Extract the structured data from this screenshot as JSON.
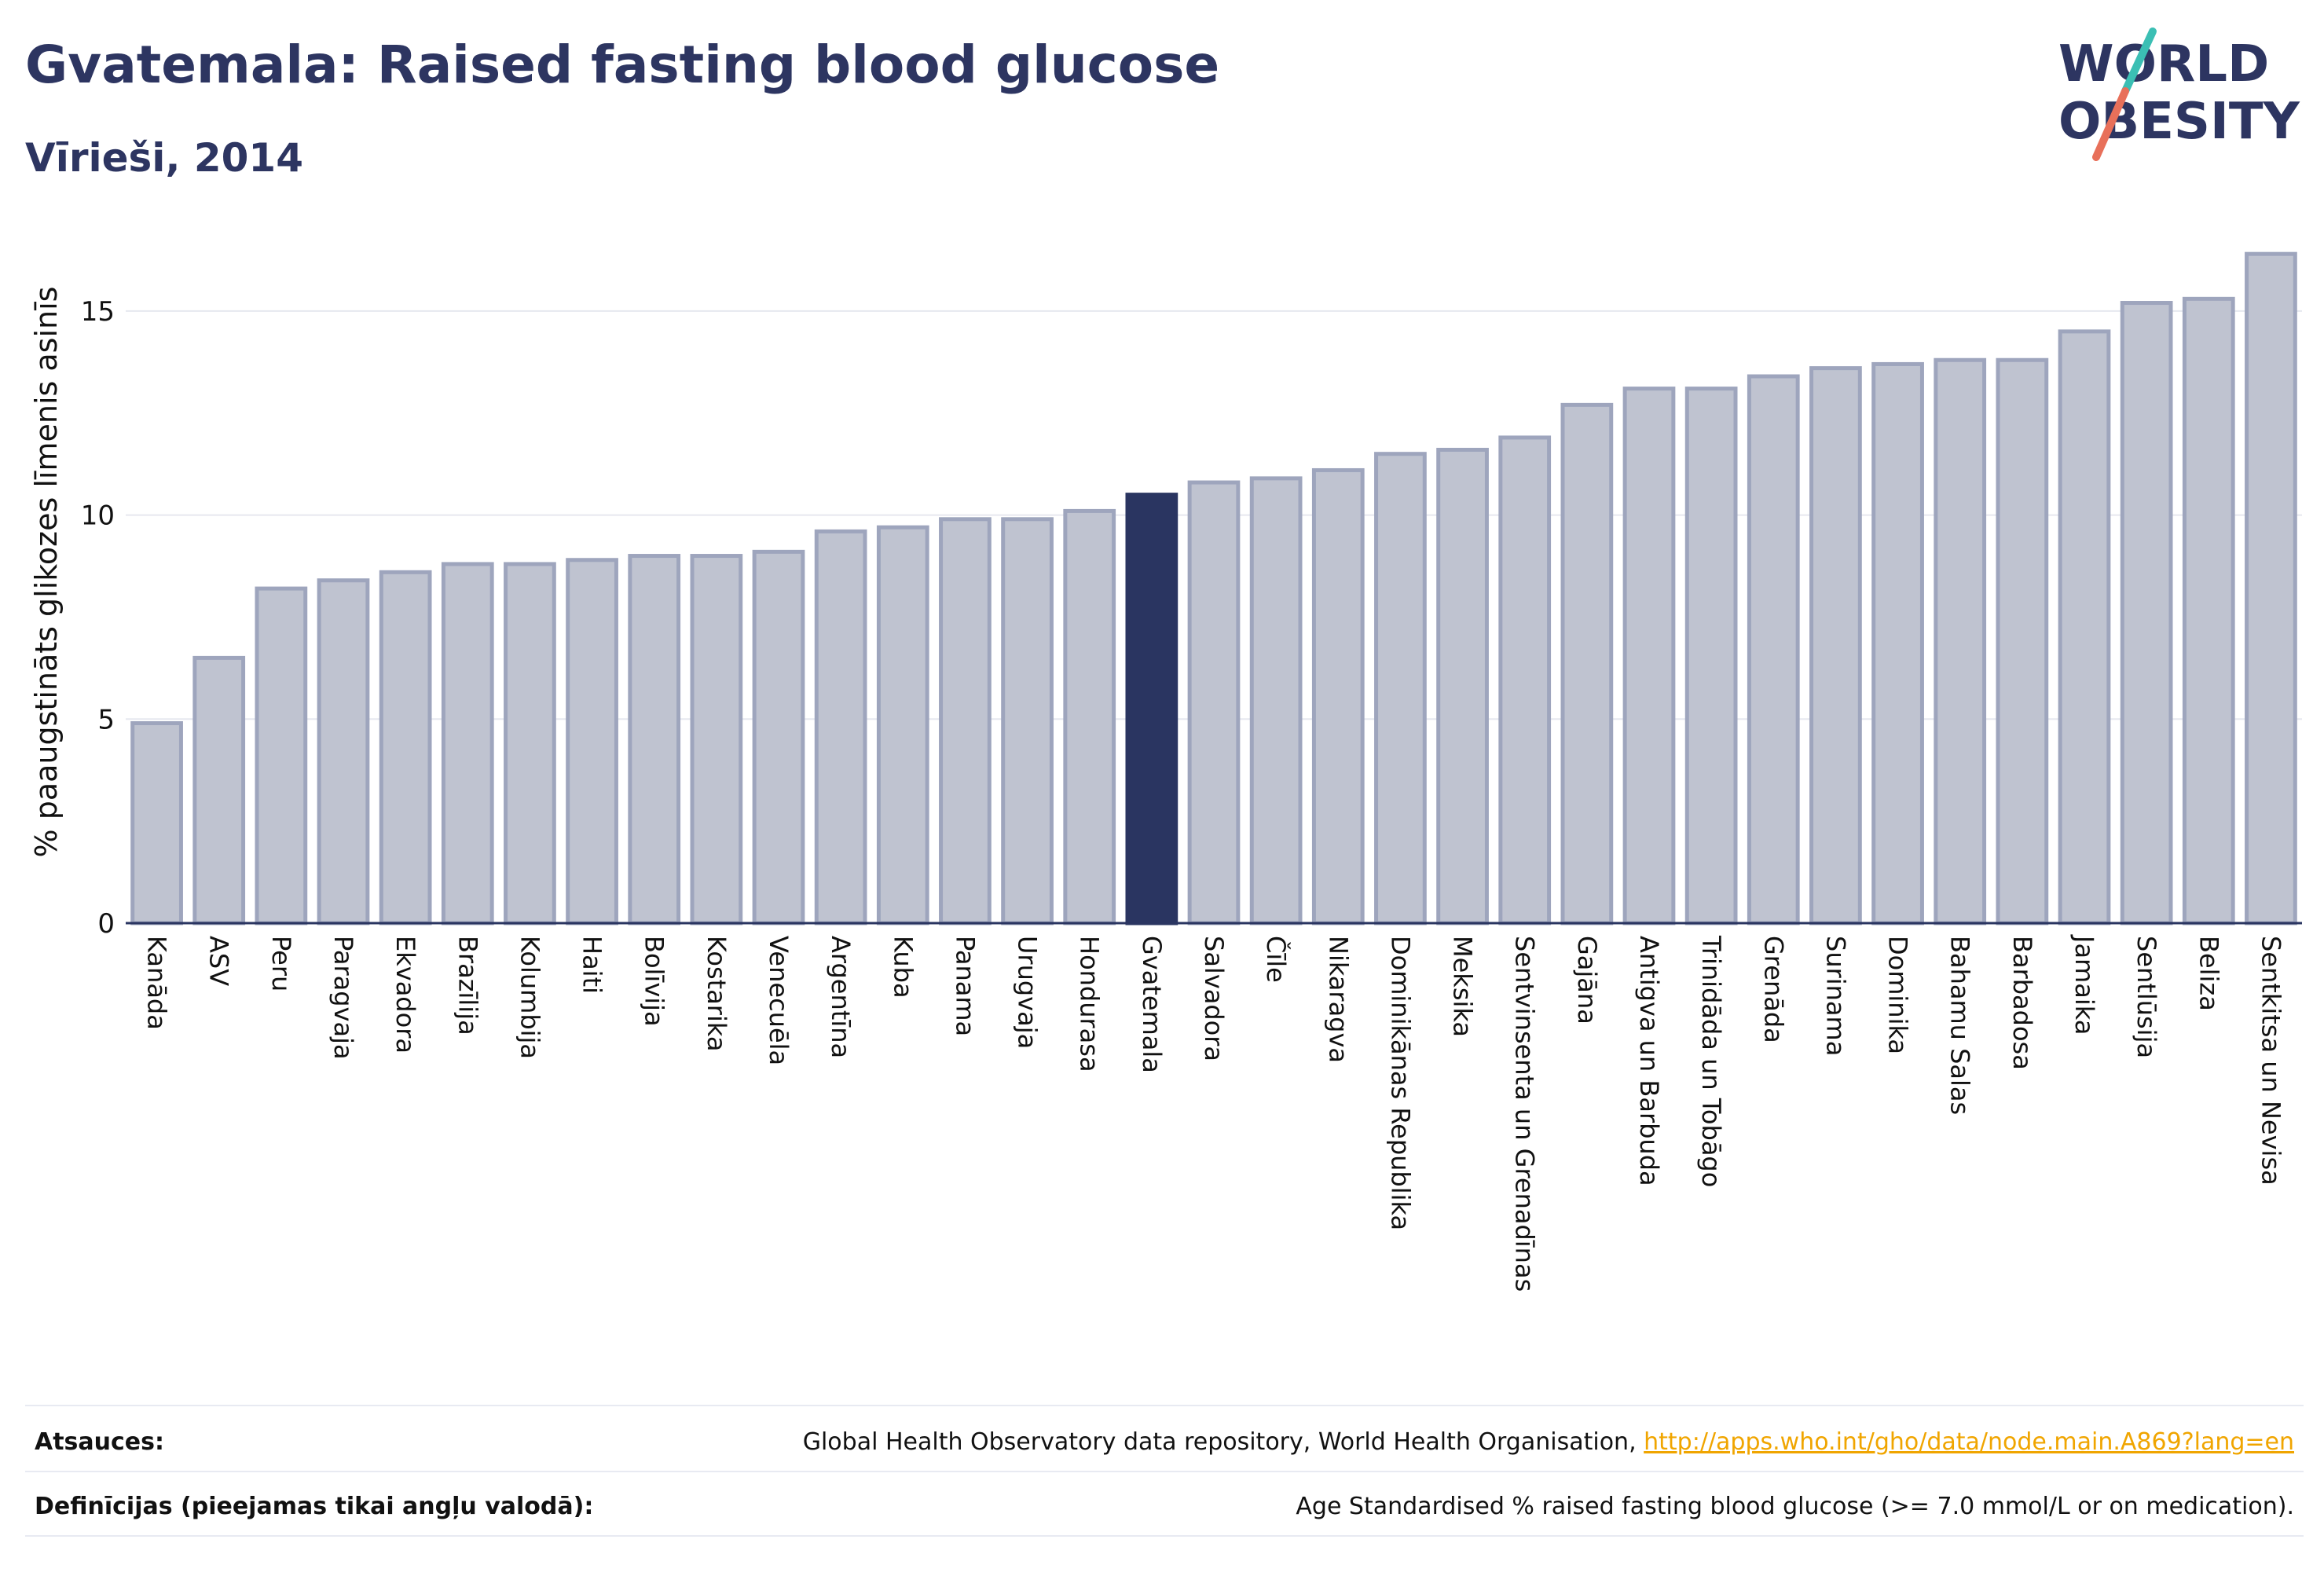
{
  "header": {
    "title": "Gvatemala: Raised fasting blood glucose",
    "subtitle": "Vīrieši, 2014"
  },
  "logo": {
    "line1": "WORLD",
    "line2": "OBESITY",
    "colors": {
      "text": "#2d3561",
      "slash_teal": "#3bbfb4",
      "slash_coral": "#e8705a"
    }
  },
  "chart_data": {
    "type": "bar",
    "title": "",
    "xlabel": "",
    "ylabel": "% paaugstināts glikozes līmenis asinīs",
    "ylim": [
      0,
      16.5
    ],
    "yticks": [
      0,
      5,
      10,
      15
    ],
    "grid": true,
    "highlight": "Gvatemala",
    "colors": {
      "bar": "#bfc3d0",
      "bar_stroke": "#9ea5bd",
      "highlight": "#2a3561"
    },
    "categories": [
      "Kanāda",
      "ASV",
      "Peru",
      "Paragvaja",
      "Ekvadora",
      "Brazīlija",
      "Kolumbija",
      "Haiti",
      "Bolīvija",
      "Kostarika",
      "Venecuēla",
      "Argentīna",
      "Kuba",
      "Panama",
      "Urugvaja",
      "Hondurasa",
      "Gvatemala",
      "Salvadora",
      "Čīle",
      "Nikaragva",
      "Dominikānas Republika",
      "Meksika",
      "Sentvinsenta un Grenadīnas",
      "Gajāna",
      "Antigva un Barbuda",
      "Trinidāda un Tobāgo",
      "Grenāda",
      "Surinama",
      "Dominika",
      "Bahamu Salas",
      "Barbadosa",
      "Jamaika",
      "Sentlūsija",
      "Beliza",
      "Sentkitsa un Nevisa"
    ],
    "values": [
      4.9,
      6.5,
      8.2,
      8.4,
      8.6,
      8.8,
      8.8,
      8.9,
      9.0,
      9.0,
      9.1,
      9.6,
      9.7,
      9.9,
      9.9,
      10.1,
      10.5,
      10.8,
      10.9,
      11.1,
      11.5,
      11.6,
      11.9,
      12.7,
      13.1,
      13.1,
      13.4,
      13.6,
      13.7,
      13.8,
      13.8,
      14.5,
      15.2,
      15.3,
      16.4
    ]
  },
  "footer": {
    "sources_label": "Atsauces:",
    "sources_text": "Global Health Observatory data repository, World Health Organisation, ",
    "sources_link": "http://apps.who.int/gho/data/node.main.A869?lang=en",
    "definitions_label": "Definīcijas (pieejamas tikai angļu valodā):",
    "definitions_text": "Age Standardised % raised fasting blood glucose (>= 7.0 mmol/L or on medication)."
  }
}
